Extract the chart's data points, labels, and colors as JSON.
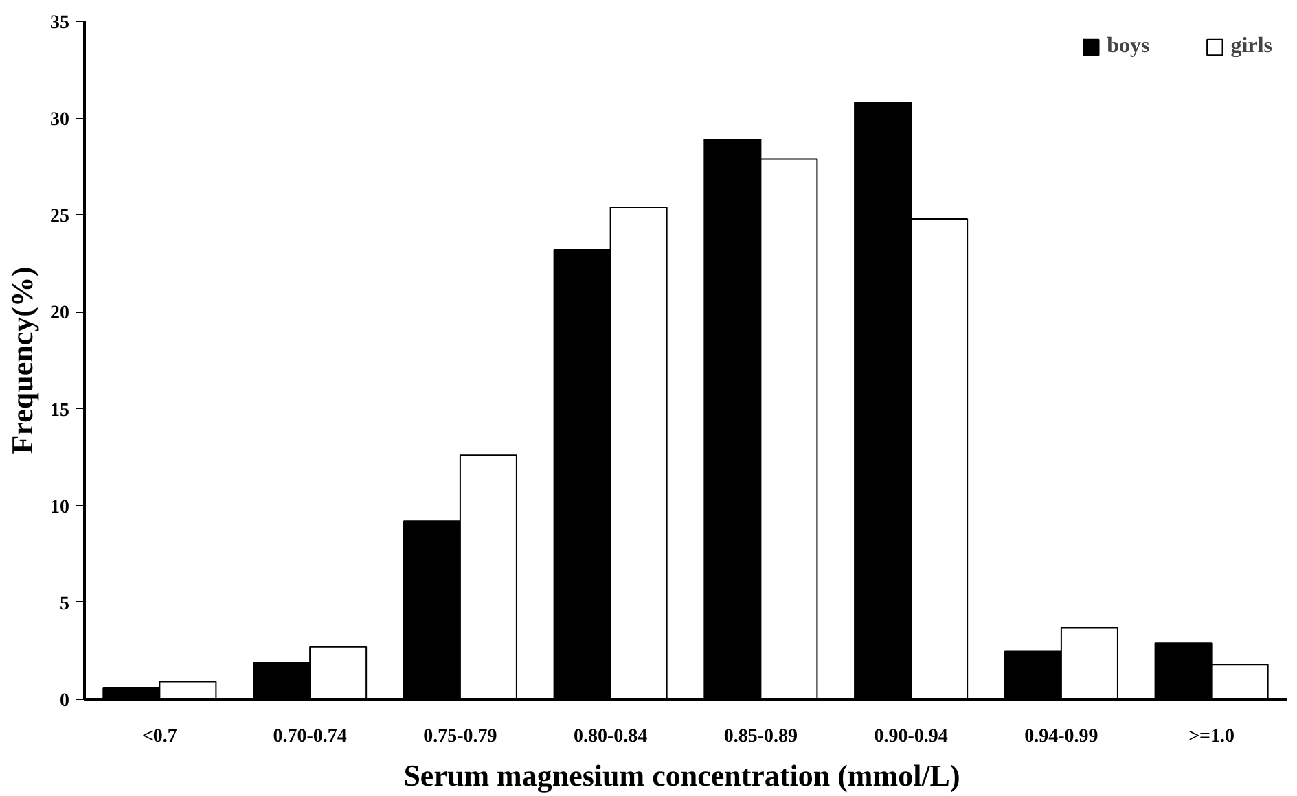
{
  "chart_data": {
    "type": "bar",
    "xlabel": "Serum  magnesium concentration (mmol/L)",
    "ylabel": "Frequency(%)",
    "categories": [
      "<0.7",
      "0.70-0.74",
      "0.75-0.79",
      "0.80-0.84",
      "0.85-0.89",
      "0.90-0.94",
      "0.94-0.99",
      ">=1.0"
    ],
    "series": [
      {
        "name": "boys",
        "color": "#000000",
        "values": [
          0.6,
          1.9,
          9.2,
          23.2,
          28.9,
          30.8,
          2.5,
          2.9
        ]
      },
      {
        "name": "girls",
        "color": "#ffffff",
        "values": [
          0.9,
          2.7,
          12.6,
          25.4,
          27.9,
          24.8,
          3.7,
          1.8
        ]
      }
    ],
    "ylim": [
      0,
      35
    ],
    "yticks": [
      0,
      5,
      10,
      15,
      20,
      25,
      30,
      35
    ],
    "grid": false,
    "legend": "top right"
  }
}
